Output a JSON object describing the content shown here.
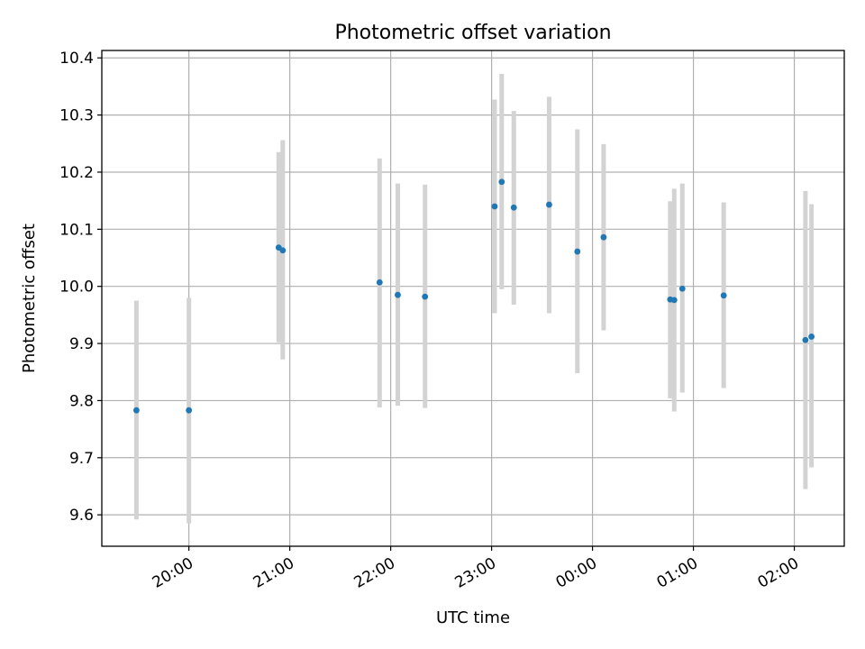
{
  "chart_data": {
    "type": "scatter",
    "title": "Photometric offset variation",
    "xlabel": "UTC time",
    "ylabel": "Photometric offset",
    "grid": true,
    "xticks": [
      "20:00",
      "21:00",
      "22:00",
      "23:00",
      "00:00",
      "01:00",
      "02:00"
    ],
    "xtick_hours": [
      20,
      21,
      22,
      23,
      24,
      25,
      26
    ],
    "xlim_hours": [
      19.137,
      26.495
    ],
    "yticks": [
      "9.6",
      "9.7",
      "9.8",
      "9.9",
      "10.0",
      "10.1",
      "10.2",
      "10.3",
      "10.4"
    ],
    "ylim": [
      9.545,
      10.413
    ],
    "colors": {
      "point": "#1f77b4",
      "errorbar": "#d3d3d3"
    },
    "series": [
      {
        "points": [
          {
            "x_hours": 19.48,
            "y": 9.783,
            "y_low": 9.592,
            "y_high": 9.975
          },
          {
            "x_hours": 20.0,
            "y": 9.783,
            "y_low": 9.585,
            "y_high": 9.98
          },
          {
            "x_hours": 20.89,
            "y": 10.068,
            "y_low": 9.902,
            "y_high": 10.235
          },
          {
            "x_hours": 20.93,
            "y": 10.063,
            "y_low": 9.872,
            "y_high": 10.256
          },
          {
            "x_hours": 21.89,
            "y": 10.007,
            "y_low": 9.788,
            "y_high": 10.224
          },
          {
            "x_hours": 22.07,
            "y": 9.985,
            "y_low": 9.791,
            "y_high": 10.18
          },
          {
            "x_hours": 22.34,
            "y": 9.982,
            "y_low": 9.787,
            "y_high": 10.178
          },
          {
            "x_hours": 23.03,
            "y": 10.14,
            "y_low": 9.953,
            "y_high": 10.327
          },
          {
            "x_hours": 23.1,
            "y": 10.183,
            "y_low": 9.995,
            "y_high": 10.372
          },
          {
            "x_hours": 23.22,
            "y": 10.138,
            "y_low": 9.968,
            "y_high": 10.307
          },
          {
            "x_hours": 23.57,
            "y": 10.143,
            "y_low": 9.953,
            "y_high": 10.332
          },
          {
            "x_hours": 23.85,
            "y": 10.061,
            "y_low": 9.848,
            "y_high": 10.275
          },
          {
            "x_hours": 24.11,
            "y": 10.086,
            "y_low": 9.923,
            "y_high": 10.249
          },
          {
            "x_hours": 24.77,
            "y": 9.977,
            "y_low": 9.804,
            "y_high": 10.149
          },
          {
            "x_hours": 24.81,
            "y": 9.976,
            "y_low": 9.781,
            "y_high": 10.171
          },
          {
            "x_hours": 24.89,
            "y": 9.996,
            "y_low": 9.814,
            "y_high": 10.18
          },
          {
            "x_hours": 25.3,
            "y": 9.984,
            "y_low": 9.822,
            "y_high": 10.147
          },
          {
            "x_hours": 26.11,
            "y": 9.906,
            "y_low": 9.645,
            "y_high": 10.167
          },
          {
            "x_hours": 26.17,
            "y": 9.912,
            "y_low": 9.683,
            "y_high": 10.144
          }
        ]
      }
    ]
  }
}
